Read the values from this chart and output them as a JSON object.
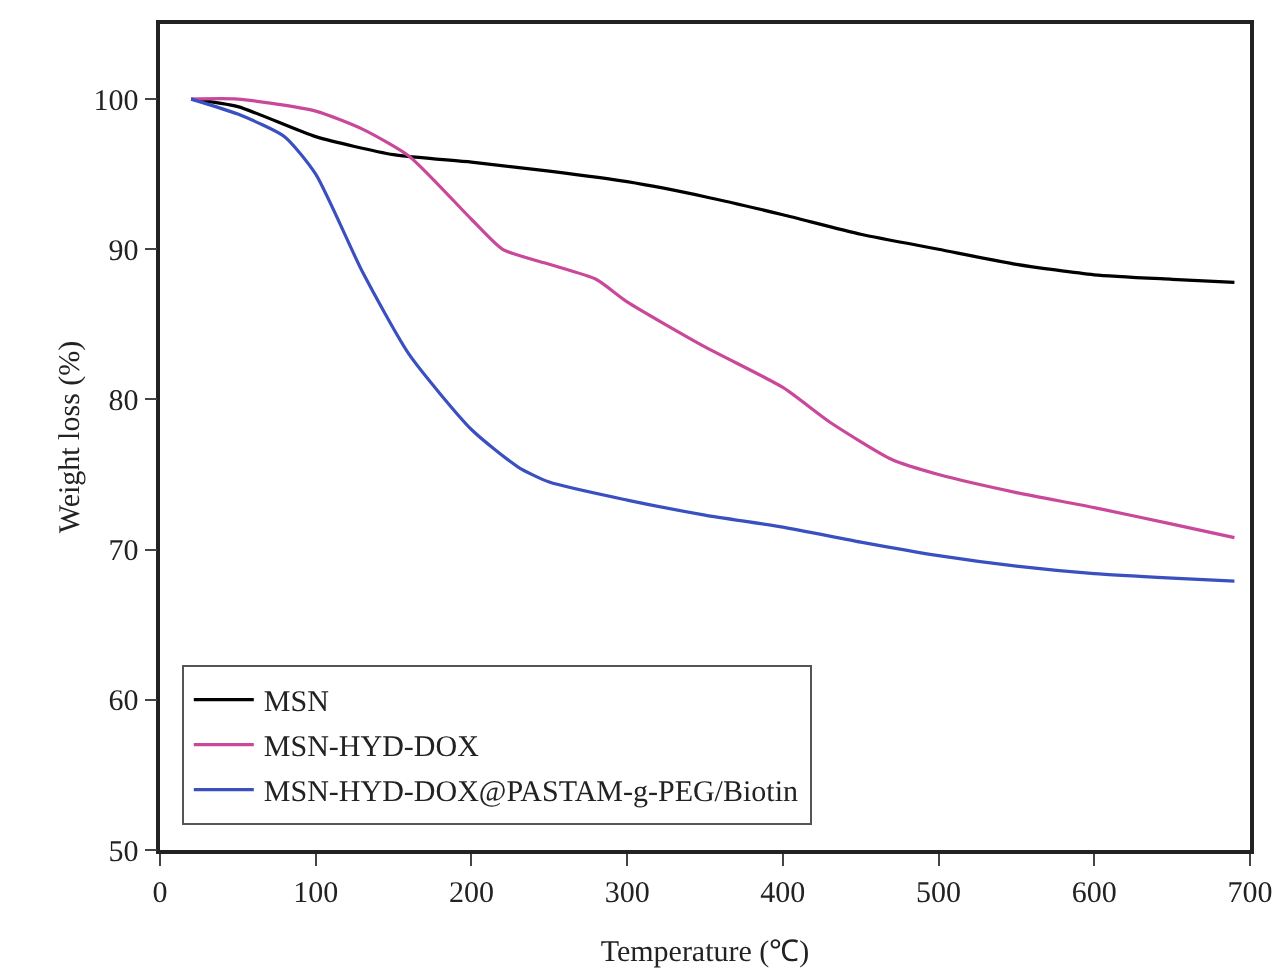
{
  "chart_data": {
    "type": "line",
    "xlabel": "Temperature (℃)",
    "ylabel": "Weight loss (%)",
    "xlim": [
      0,
      700
    ],
    "xticks": [
      0,
      100,
      200,
      300,
      400,
      500,
      600,
      700
    ],
    "ylim": [
      50,
      105
    ],
    "yticks": [
      50,
      60,
      70,
      80,
      90,
      100
    ],
    "grid": false,
    "legend": "bottom left",
    "marker": "none",
    "line_style": "solid",
    "series": [
      {
        "name": "MSN",
        "color": "#000000",
        "x": [
          20,
          50,
          100,
          150,
          200,
          250,
          300,
          350,
          400,
          450,
          500,
          550,
          600,
          650,
          690
        ],
        "values": [
          100,
          99.5,
          97.5,
          96.3,
          95.8,
          95.2,
          94.5,
          93.5,
          92.3,
          91,
          90,
          89,
          88.3,
          88,
          87.8
        ]
      },
      {
        "name": "MSN-HYD-DOX",
        "color": "#c9489a",
        "x": [
          20,
          50,
          100,
          130,
          160,
          200,
          220,
          250,
          280,
          300,
          350,
          400,
          430,
          470,
          500,
          550,
          600,
          650,
          690
        ],
        "values": [
          100,
          100,
          99.2,
          98,
          96.2,
          92,
          90,
          89,
          88,
          86.5,
          83.5,
          80.8,
          78.5,
          76,
          75,
          73.8,
          72.8,
          71.7,
          70.8
        ]
      },
      {
        "name": "MSN-HYD-DOX@PASTAM-g-PEG/Biotin",
        "color": "#3a4fc0",
        "x": [
          20,
          50,
          80,
          100,
          130,
          160,
          200,
          230,
          250,
          300,
          350,
          400,
          450,
          500,
          550,
          600,
          650,
          690
        ],
        "values": [
          100,
          99,
          97.5,
          95,
          88.5,
          83,
          78,
          75.5,
          74.5,
          73.3,
          72.3,
          71.5,
          70.5,
          69.6,
          68.9,
          68.4,
          68.1,
          67.9
        ]
      }
    ]
  }
}
